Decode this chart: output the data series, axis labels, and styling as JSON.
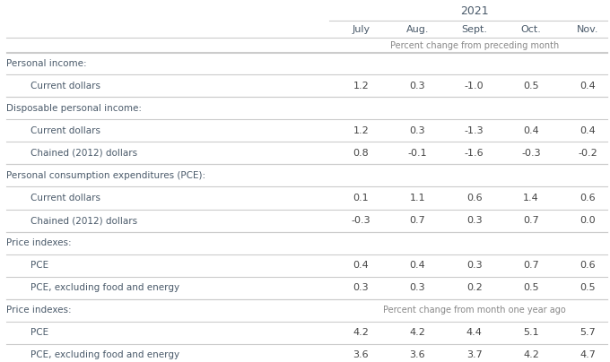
{
  "year_label": "2021",
  "col_headers": [
    "July",
    "Aug.",
    "Sept.",
    "Oct.",
    "Nov."
  ],
  "subheader1": "Percent change from preceding month",
  "subheader2": "Percent change from month one year ago",
  "rows": [
    {
      "label": "Personal income:",
      "indent": false,
      "values": [
        null,
        null,
        null,
        null,
        null
      ],
      "is_section": true,
      "subheader": false
    },
    {
      "label": "Current dollars",
      "indent": true,
      "values": [
        "1.2",
        "0.3",
        "-1.0",
        "0.5",
        "0.4"
      ],
      "is_section": false,
      "subheader": false
    },
    {
      "label": "Disposable personal income:",
      "indent": false,
      "values": [
        null,
        null,
        null,
        null,
        null
      ],
      "is_section": true,
      "subheader": false
    },
    {
      "label": "Current dollars",
      "indent": true,
      "values": [
        "1.2",
        "0.3",
        "-1.3",
        "0.4",
        "0.4"
      ],
      "is_section": false,
      "subheader": false
    },
    {
      "label": "Chained (2012) dollars",
      "indent": true,
      "values": [
        "0.8",
        "-0.1",
        "-1.6",
        "-0.3",
        "-0.2"
      ],
      "is_section": false,
      "subheader": false
    },
    {
      "label": "Personal consumption expenditures (PCE):",
      "indent": false,
      "values": [
        null,
        null,
        null,
        null,
        null
      ],
      "is_section": true,
      "subheader": false
    },
    {
      "label": "Current dollars",
      "indent": true,
      "values": [
        "0.1",
        "1.1",
        "0.6",
        "1.4",
        "0.6"
      ],
      "is_section": false,
      "subheader": false
    },
    {
      "label": "Chained (2012) dollars",
      "indent": true,
      "values": [
        "-0.3",
        "0.7",
        "0.3",
        "0.7",
        "0.0"
      ],
      "is_section": false,
      "subheader": false
    },
    {
      "label": "Price indexes:",
      "indent": false,
      "values": [
        null,
        null,
        null,
        null,
        null
      ],
      "is_section": true,
      "subheader": false
    },
    {
      "label": "PCE",
      "indent": true,
      "values": [
        "0.4",
        "0.4",
        "0.3",
        "0.7",
        "0.6"
      ],
      "is_section": false,
      "subheader": false
    },
    {
      "label": "PCE, excluding food and energy",
      "indent": true,
      "values": [
        "0.3",
        "0.3",
        "0.2",
        "0.5",
        "0.5"
      ],
      "is_section": false,
      "subheader": false
    },
    {
      "label": "Price indexes:",
      "indent": false,
      "values": [
        null,
        null,
        null,
        null,
        null
      ],
      "is_section": true,
      "subheader": true
    },
    {
      "label": "PCE",
      "indent": true,
      "values": [
        "4.2",
        "4.2",
        "4.4",
        "5.1",
        "5.7"
      ],
      "is_section": false,
      "subheader": false
    },
    {
      "label": "PCE, excluding food and energy",
      "indent": true,
      "values": [
        "3.6",
        "3.6",
        "3.7",
        "4.2",
        "4.7"
      ],
      "is_section": false,
      "subheader": false
    }
  ],
  "bg_color": "#ffffff",
  "section_color": "#4a5a6a",
  "line_color": "#cccccc",
  "header_color": "#4a5a6a",
  "subheader_color": "#888888",
  "value_color": "#444444"
}
